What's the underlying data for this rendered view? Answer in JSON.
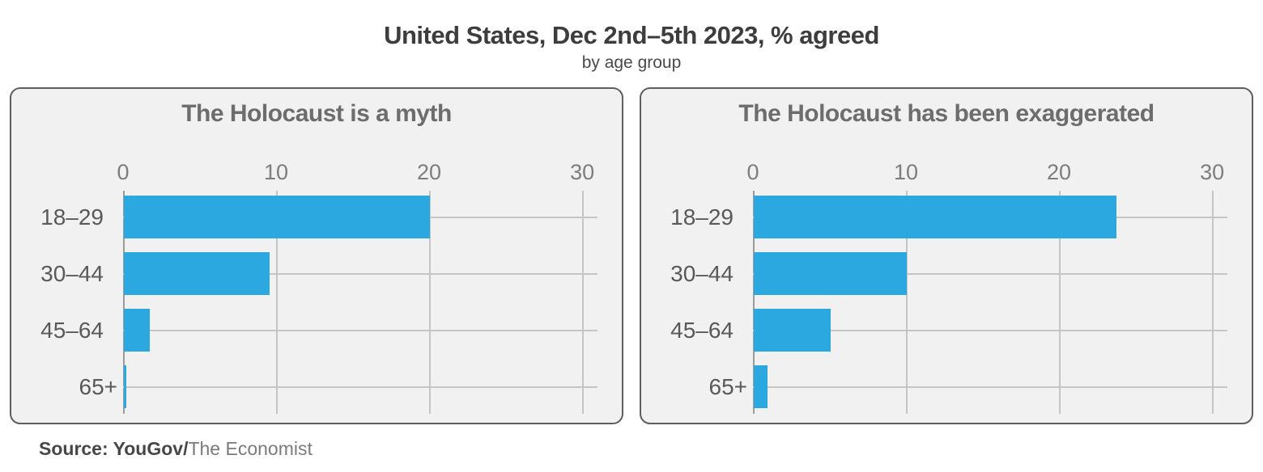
{
  "header": {
    "title": "United States, Dec 2nd–5th 2023, % agreed",
    "subtitle": "by age group"
  },
  "source": {
    "prefix": "Source: YouGov/",
    "publisher": "The Economist"
  },
  "colors": {
    "bar": "#2ca8e1",
    "panel_bg": "#f1f1f1",
    "panel_border": "#5f5f5f",
    "grid": "#c5c5c5",
    "axis": "#9a9a9a"
  },
  "chart_data": {
    "type": "bar",
    "orientation": "horizontal",
    "title": "United States, Dec 2nd–5th 2023, % agreed",
    "subtitle": "by age group",
    "categories": [
      "18–29",
      "30–44",
      "45–64",
      "65+"
    ],
    "ticks": [
      0,
      10,
      20,
      30
    ],
    "axis_max": 31,
    "grid": true,
    "legend": "none",
    "panels": [
      {
        "title": "The Holocaust is a myth",
        "values": [
          20,
          9.5,
          1.7,
          0.15
        ]
      },
      {
        "title": "The Holocaust has been exaggerated",
        "values": [
          23.7,
          10,
          5,
          0.9
        ]
      }
    ]
  }
}
